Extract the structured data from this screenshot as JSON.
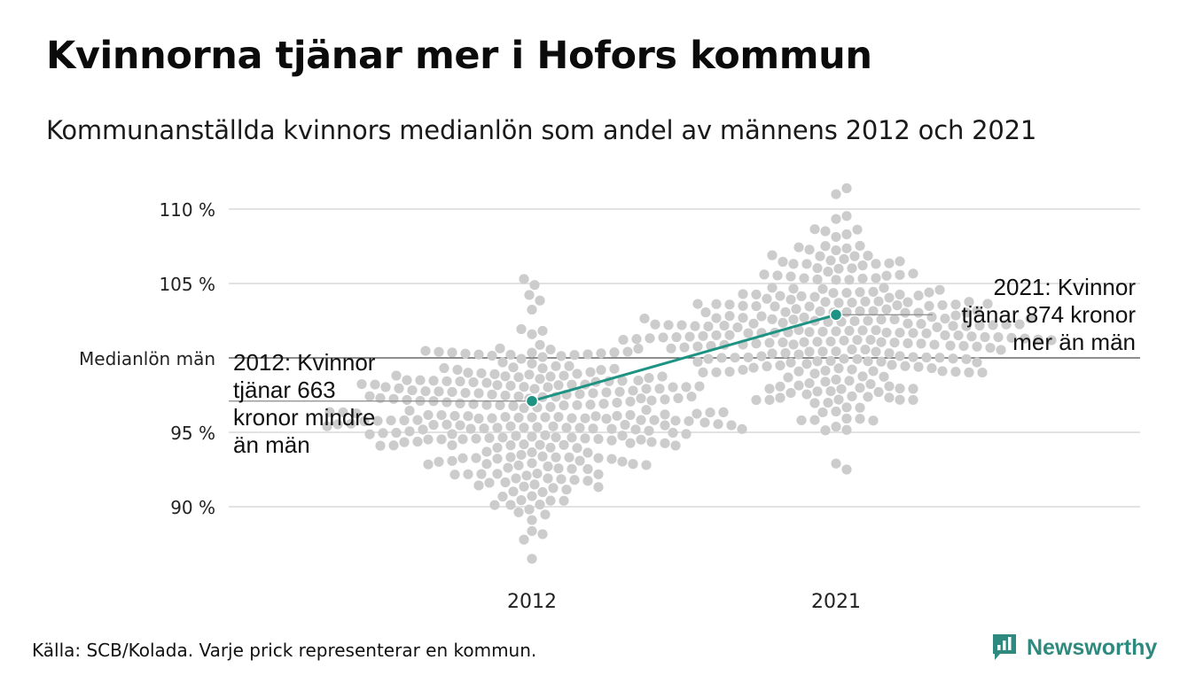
{
  "title": "Kvinnorna tjänar mer i Hofors kommun",
  "subtitle": "Kommunanställda kvinnors medianlön som andel av männens 2012 och 2021",
  "source": "Källa: SCB/Kolada. Varje prick representerar en kommun.",
  "brand": {
    "name": "Newsworthy",
    "icon": "newsworthy-logo-icon",
    "color": "#2e8a7e"
  },
  "colors": {
    "highlight": "#1e9384",
    "dots": "#cccccc",
    "grid": "#e2e2e2",
    "reference": "#4a4a4a"
  },
  "chart_data": {
    "type": "scatter",
    "subtype": "beeswarm",
    "categories": [
      "2012",
      "2021"
    ],
    "y_ticks": [
      {
        "value": 90,
        "label": "90 %"
      },
      {
        "value": 95,
        "label": "95 %"
      },
      {
        "value": 105,
        "label": "105 %"
      },
      {
        "value": 110,
        "label": "110 %"
      }
    ],
    "ylim": [
      85.5,
      112
    ],
    "grid": true,
    "reference_line": {
      "value": 100,
      "label": "Medianlön män"
    },
    "distributions": [
      {
        "category": "2012",
        "min": 86.5,
        "max": 105.3,
        "mean": 96.0,
        "sd": 2.9,
        "count": 290
      },
      {
        "category": "2021",
        "min": 92.5,
        "max": 111.4,
        "mean": 101.8,
        "sd": 3.1,
        "count": 290
      }
    ],
    "highlight": {
      "name": "Hofors",
      "values": [
        {
          "category": "2012",
          "value": 97.1
        },
        {
          "category": "2021",
          "value": 102.9
        }
      ]
    },
    "annotations": [
      {
        "category": "2012",
        "text": [
          "2012: Kvinnor",
          "tjänar 663",
          "kronor mindre",
          "än män"
        ]
      },
      {
        "category": "2021",
        "text": [
          "2021: Kvinnor",
          "tjänar 874 kronor",
          "mer än män"
        ]
      }
    ]
  }
}
